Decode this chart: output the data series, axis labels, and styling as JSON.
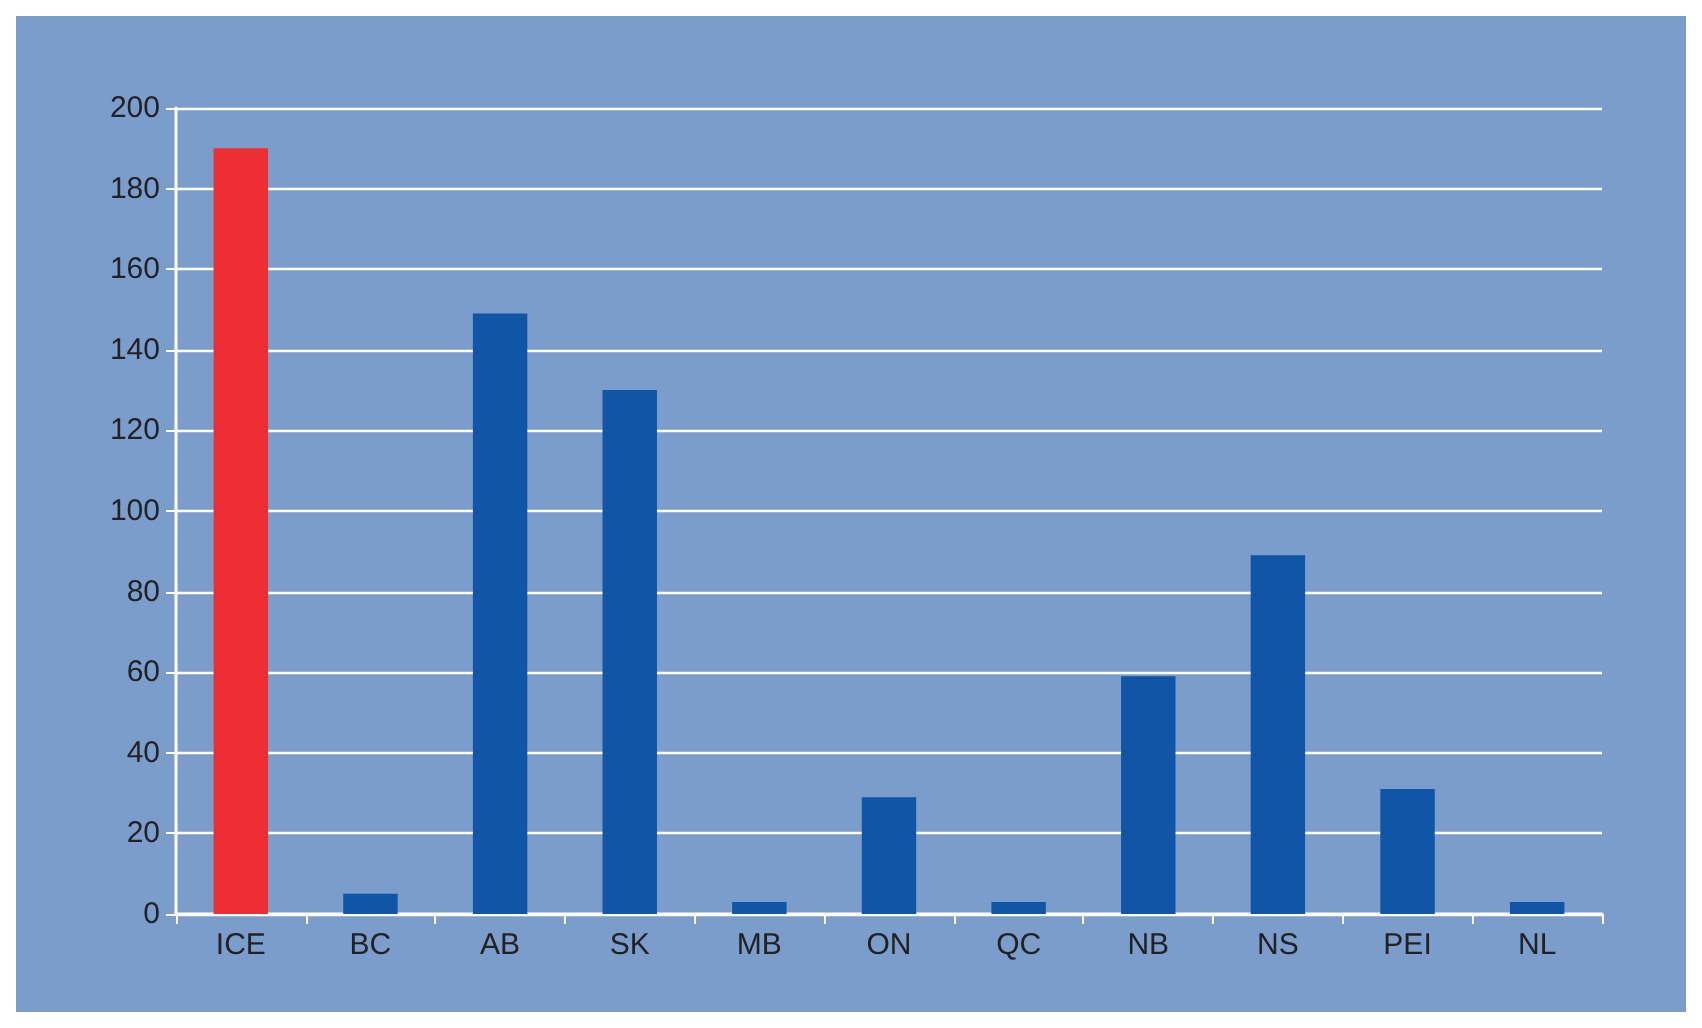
{
  "chart_data": {
    "type": "bar",
    "categories": [
      "ICE",
      "BC",
      "AB",
      "SK",
      "MB",
      "ON",
      "QC",
      "NB",
      "NS",
      "PEI",
      "NL"
    ],
    "values": [
      190,
      5,
      149,
      130,
      3,
      29,
      3,
      59,
      89,
      31,
      3
    ],
    "colors": [
      "#ee2e33",
      "#1155a6",
      "#1155a6",
      "#1155a6",
      "#1155a6",
      "#1155a6",
      "#1155a6",
      "#1155a6",
      "#1155a6",
      "#1155a6",
      "#1155a6"
    ],
    "ylim": [
      0,
      200
    ],
    "yticks": [
      0,
      20,
      40,
      60,
      80,
      100,
      120,
      140,
      160,
      180,
      200
    ],
    "grid": "y"
  }
}
